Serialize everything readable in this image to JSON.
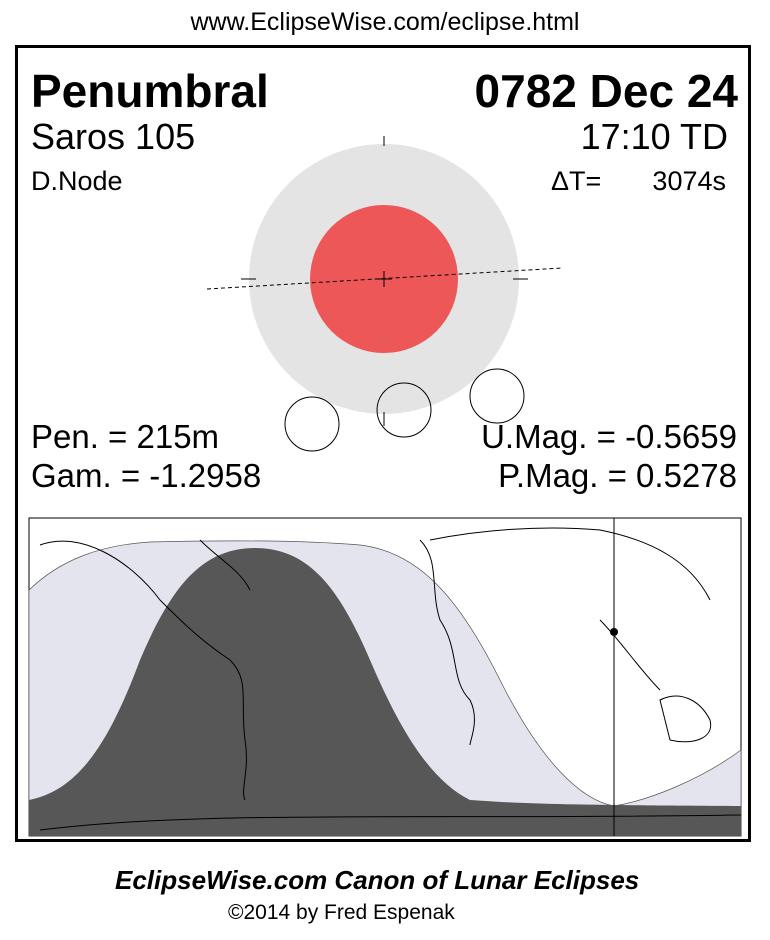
{
  "url": "www.EclipseWise.com/eclipse.html",
  "eclipse_type": "Penumbral",
  "date": "0782 Dec 24",
  "saros": "Saros 105",
  "time": "17:10 TD",
  "node": "D.Node",
  "delta_t_label": "ΔT=",
  "delta_t_value": "3074s",
  "pen_duration": "Pen. = 215m",
  "gamma": "Gam. = -1.2958",
  "umag": "U.Mag. = -0.5659",
  "pmag": "P.Mag. = 0.5278",
  "footer_title": "EclipseWise.com Canon of Lunar Eclipses",
  "copyright": "©2014 by Fred Espenak",
  "colors": {
    "umbra": "#ee5757",
    "penumbra": "#e4e4e4",
    "night": "#575757",
    "penumbral_zone": "#e4e4ee"
  }
}
